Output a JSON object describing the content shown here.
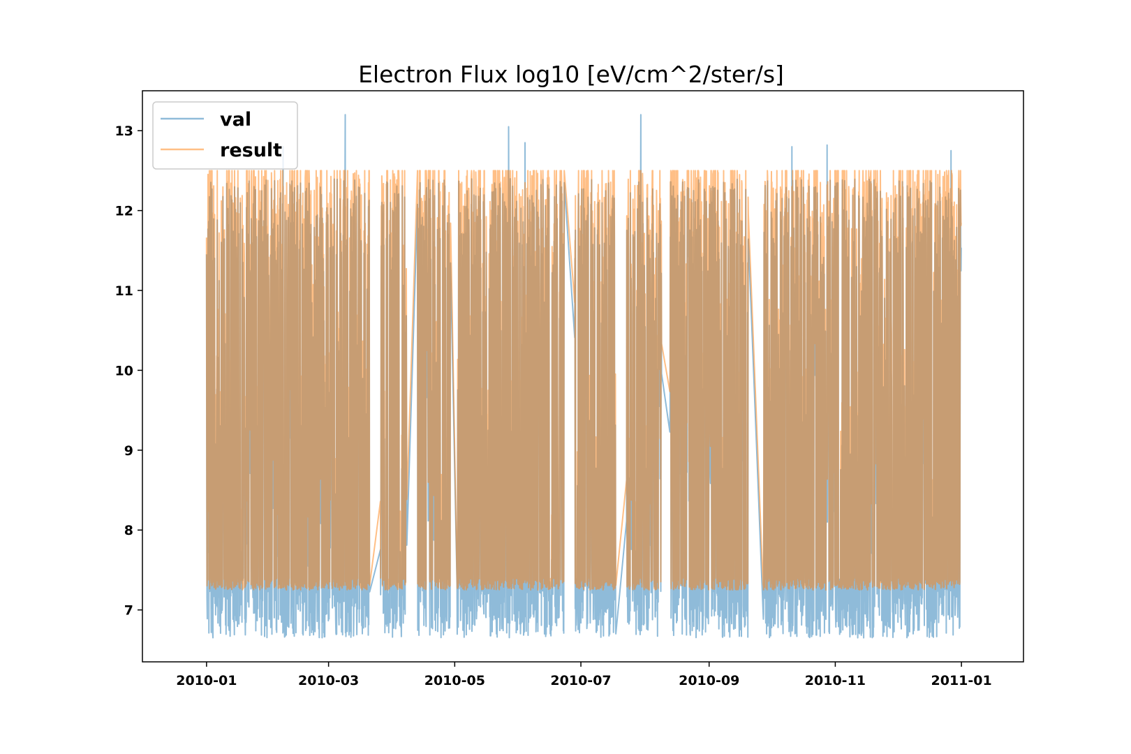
{
  "chart_data": {
    "type": "line",
    "title": "Electron Flux log10 [eV/cm^2/ster/s]",
    "xlabel": "",
    "ylabel": "",
    "x_range": [
      "2009-12-01",
      "2011-01-31"
    ],
    "ylim": [
      6.35,
      13.5
    ],
    "x_ticks": [
      "2010-01",
      "2010-03",
      "2010-05",
      "2010-07",
      "2010-09",
      "2010-11",
      "2011-01"
    ],
    "y_ticks": [
      7,
      8,
      9,
      10,
      11,
      12,
      13
    ],
    "grid": false,
    "legend_position": "upper-left",
    "date_span": [
      "2010-01-01",
      "2011-01-01"
    ],
    "data_gaps": [
      [
        "2010-03-21",
        "2010-03-26"
      ],
      [
        "2010-04-08",
        "2010-04-13"
      ],
      [
        "2010-04-29",
        "2010-05-02"
      ],
      [
        "2010-06-23",
        "2010-06-28"
      ],
      [
        "2010-07-18",
        "2010-07-23"
      ],
      [
        "2010-08-09",
        "2010-08-13"
      ],
      [
        "2010-09-20",
        "2010-09-27"
      ]
    ],
    "series": [
      {
        "name": "val",
        "color": "#1f77b4",
        "opacity": 0.5,
        "floor": 6.65,
        "base_band": [
          6.65,
          7.4
        ],
        "typical_peak": [
          11.2,
          12.4
        ],
        "max": 13.2,
        "notable_peaks": [
          {
            "x": "2010-02-07",
            "y": 12.8
          },
          {
            "x": "2010-03-09",
            "y": 13.2
          },
          {
            "x": "2010-05-27",
            "y": 13.05
          },
          {
            "x": "2010-06-04",
            "y": 12.85
          },
          {
            "x": "2010-07-30",
            "y": 13.2
          },
          {
            "x": "2010-10-11",
            "y": 12.8
          },
          {
            "x": "2010-10-28",
            "y": 12.82
          },
          {
            "x": "2010-12-27",
            "y": 12.75
          }
        ]
      },
      {
        "name": "result",
        "color": "#ff7f0e",
        "opacity": 0.5,
        "floor": 7.25,
        "typical_peak": [
          11.0,
          12.1
        ],
        "max": 12.5
      }
    ]
  }
}
